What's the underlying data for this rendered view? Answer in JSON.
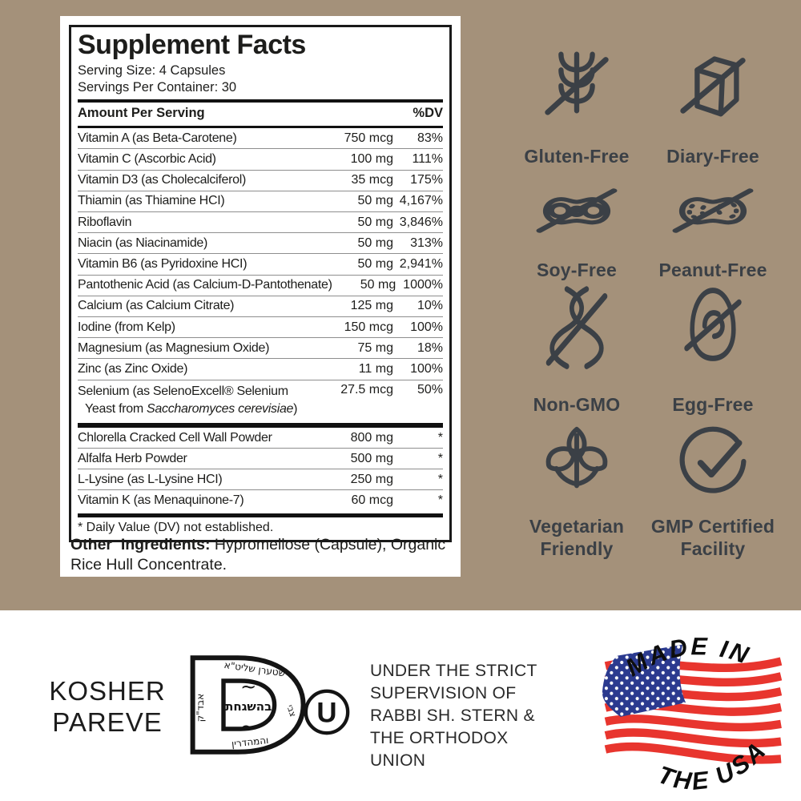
{
  "label": {
    "title": "Supplement Facts",
    "serving_size": "Serving Size: 4 Capsules",
    "servings_per_container": "Servings Per Container: 30",
    "header": {
      "amount": "Amount Per Serving",
      "dv": "%DV"
    },
    "rows": [
      {
        "name": "Vitamin A (as Beta-Carotene)",
        "amount": "750 mcg",
        "dv": "83%"
      },
      {
        "name": "Vitamin C (Ascorbic Acid)",
        "amount": "100 mg",
        "dv": "111%"
      },
      {
        "name": "Vitamin D3 (as Cholecalciferol)",
        "amount": "35 mcg",
        "dv": "175%"
      },
      {
        "name": "Thiamin (as Thiamine HCI)",
        "amount": "50 mg",
        "dv": "4,167%"
      },
      {
        "name": "Riboflavin",
        "amount": "50 mg",
        "dv": "3,846%"
      },
      {
        "name": "Niacin (as Niacinamide)",
        "amount": "50 mg",
        "dv": "313%"
      },
      {
        "name": "Vitamin B6 (as Pyridoxine HCI)",
        "amount": "50 mg",
        "dv": "2,941%"
      },
      {
        "name": "Pantothenic Acid (as Calcium-D-Pantothenate)",
        "amount": "50 mg",
        "dv": "1000%"
      },
      {
        "name": "Calcium (as Calcium Citrate)",
        "amount": "125 mg",
        "dv": "10%"
      },
      {
        "name": "Iodine (from Kelp)",
        "amount": "150 mcg",
        "dv": "100%"
      },
      {
        "name": "Magnesium (as Magnesium Oxide)",
        "amount": "75 mg",
        "dv": "18%"
      },
      {
        "name": "Zinc (as Zinc Oxide)",
        "amount": "11 mg",
        "dv": "100%"
      }
    ],
    "selenium": {
      "name_line1": "Selenium (as SelenoExcell® Selenium",
      "name_line2_prefix": "Yeast from ",
      "name_line2_italic": "Saccharomyces cerevisiae",
      "name_line2_suffix": ")",
      "amount": "27.5 mcg",
      "dv": "50%"
    },
    "rows2": [
      {
        "name": "Chlorella Cracked Cell Wall Powder",
        "amount": "800 mg",
        "dv": "*"
      },
      {
        "name": "Alfalfa Herb Powder",
        "amount": "500 mg",
        "dv": "*"
      },
      {
        "name": "L-Lysine (as L-Lysine HCI)",
        "amount": "250 mg",
        "dv": "*"
      },
      {
        "name": "Vitamin K (as Menaquinone-7)",
        "amount": "60 mcg",
        "dv": "*"
      }
    ],
    "footnote": "* Daily Value (DV) not established.",
    "other_ingredients_label": "Other  Ingredients:",
    "other_ingredients_text": " Hypromellose (Capsule), Organic Rice Hull Concentrate."
  },
  "badges": [
    {
      "icon": "wheat-slash",
      "label": "Gluten-Free"
    },
    {
      "icon": "milk-carton-slash",
      "label": "Diary-Free"
    },
    {
      "icon": "soybean-slash",
      "label": "Soy-Free"
    },
    {
      "icon": "peanut-slash",
      "label": "Peanut-Free"
    },
    {
      "icon": "dna-slash",
      "label": "Non-GMO"
    },
    {
      "icon": "egg-slash",
      "label": "Egg-Free"
    },
    {
      "icon": "leaves",
      "label": "Vegetarian Friendly"
    },
    {
      "icon": "check-circle",
      "label": "GMP Certified Facility"
    }
  ],
  "certifications": {
    "kosher_line1": "KOSHER",
    "kosher_line2": "PAREVE",
    "kosher_d": {
      "center": "בהשגחת",
      "tilde": "~",
      "rim_top": "שטערן שליט\"א",
      "rim_right": "צבי",
      "rim_left": "אבד\"ק",
      "rim_bottom": "והמהדרין"
    },
    "ou_letter": "U",
    "supervision_lines": [
      "UNDER THE STRICT",
      "SUPERVISION OF",
      "RABBI SH. STERN &",
      "THE ORTHODOX",
      "UNION"
    ],
    "made_in": "MADE IN",
    "the_usa": "THE USA"
  },
  "colors": {
    "background_tan": "#a4917a",
    "icon_charcoal": "#3b4046",
    "label_ink": "#1d1d1b",
    "flag_red": "#e8352e",
    "flag_blue": "#2b3a8f"
  }
}
